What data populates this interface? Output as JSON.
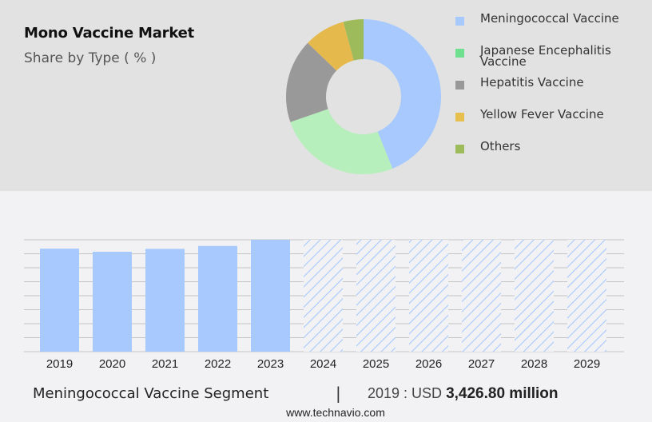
{
  "header": {
    "title": "Mono Vaccine Market",
    "subtitle": "Share by Type ( % )"
  },
  "legend": {
    "items": [
      {
        "label": "Meningococcal Vaccine",
        "color": "#a7c9fd"
      },
      {
        "label": "Japanese Encephalitis Vaccine",
        "color": "#6ee08f"
      },
      {
        "label": "Hepatitis Vaccine",
        "color": "#999999"
      },
      {
        "label": "Yellow Fever Vaccine",
        "color": "#e6bf4e"
      },
      {
        "label": "Others",
        "color": "#9dbb5a"
      }
    ]
  },
  "footer": {
    "segment": "Meningococcal Vaccine Segment",
    "separator": "|",
    "value_prefix": "2019 : USD ",
    "value": "3,426.80 million",
    "url": "www.technavio.com"
  },
  "colors": {
    "bar_actual": "#a7c9fd",
    "bar_forecast_hatch": "#a7c9fd",
    "top_band": "#e2e2e2",
    "background": "#f2f2f4",
    "gridline": "#c4c4c4"
  },
  "chart_data": [
    {
      "type": "pie",
      "title": "Mono Vaccine Market",
      "subtitle": "Share by Type ( % )",
      "donut": true,
      "categories": [
        "Meningococcal Vaccine",
        "Japanese Encephalitis Vaccine",
        "Hepatitis Vaccine",
        "Yellow Fever Vaccine",
        "Others"
      ],
      "values": [
        43.9,
        25.8,
        17.5,
        8.6,
        4.2
      ],
      "colors": [
        "#a7c9fd",
        "#b7efbc",
        "#999999",
        "#e6b94d",
        "#9dbb5a"
      ],
      "legend_position": "right"
    },
    {
      "type": "bar",
      "title": "Meningococcal Vaccine Segment",
      "categories": [
        "2019",
        "2020",
        "2021",
        "2022",
        "2023",
        "2024",
        "2025",
        "2026",
        "2027",
        "2028",
        "2029"
      ],
      "series": [
        {
          "name": "Actual",
          "values": [
            3426.8,
            3330,
            3420,
            3510,
            3700,
            null,
            null,
            null,
            null,
            null,
            null
          ]
        },
        {
          "name": "Forecast",
          "style": "hatched",
          "values": [
            null,
            null,
            null,
            null,
            null,
            3700,
            3700,
            3700,
            3700,
            3700,
            3700
          ]
        }
      ],
      "annotation": "2019 : USD 3,426.80 million",
      "xlabel": "",
      "ylabel": "",
      "grid": true,
      "y_axis_labels": "hidden"
    }
  ]
}
